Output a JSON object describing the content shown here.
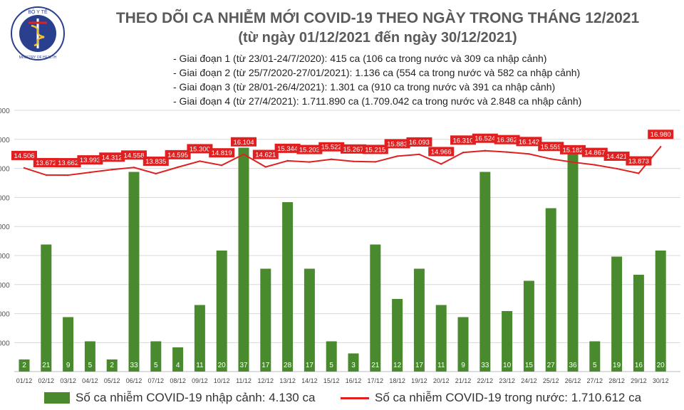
{
  "header": {
    "logo_text_top": "BỘ Y TẾ",
    "logo_text_bottom": "MINISTRY OF HEALTH",
    "title": "THEO DÕI CA NHIỄM MỚI COVID-19 THEO NGÀY TRONG THÁNG 12/2021",
    "subtitle": "(từ ngày 01/12/2021 đến ngày 30/12/2021)",
    "stages": [
      "- Giai đoạn 1 (từ 23/01-24/7/2020): 415 ca (106 ca trong nước và 309 ca nhập cảnh)",
      "- Giai đoạn 2 (từ 25/7/2020-27/01/2021): 1.136 ca (554 ca trong nước và 582 ca nhập cảnh)",
      "- Giai đoạn 3 (từ 28/01-26/4/2021): 1.301 ca (910 ca trong nước và 391 ca nhập cảnh)",
      "- Giai đoạn 4 (từ 27/4/2021): 1.711.890 ca (1.709.042 ca trong nước và 2.848 ca nhập cảnh)"
    ]
  },
  "colors": {
    "bar": "#4a8a2e",
    "line": "#e02020",
    "label_box": "#e02020",
    "title": "#5a5a5a"
  },
  "chart_data": {
    "type": "bar",
    "categories": [
      "01/12",
      "02/12",
      "03/12",
      "04/12",
      "05/12",
      "06/12",
      "07/12",
      "08/12",
      "09/12",
      "10/12",
      "11/12",
      "12/12",
      "13/12",
      "14/12",
      "15/12",
      "16/12",
      "17/12",
      "18/12",
      "19/12",
      "20/12",
      "21/12",
      "22/12",
      "23/12",
      "24/12",
      "25/12",
      "26/12",
      "27/12",
      "28/12",
      "29/12",
      "30/12"
    ],
    "series": [
      {
        "name": "Số ca nhiễm COVID-19 nhập cảnh: 4.130 ca",
        "type": "bar",
        "values": [
          2,
          21,
          9,
          5,
          2,
          33,
          5,
          4,
          11,
          20,
          37,
          17,
          28,
          17,
          5,
          3,
          21,
          12,
          17,
          11,
          9,
          33,
          10,
          15,
          27,
          36,
          5,
          19,
          16,
          20
        ],
        "labels": [
          "2",
          "21",
          "9",
          "5",
          "2",
          "33",
          "5",
          "4",
          "11",
          "20",
          "37",
          "17",
          "28",
          "17",
          "5",
          "3",
          "21",
          "12",
          "17",
          "11",
          "9",
          "33",
          "10",
          "15",
          "27",
          "36",
          "5",
          "19",
          "16",
          "20"
        ]
      },
      {
        "name": "Số ca nhiễm COVID-19 trong nước: 1.710.612 ca",
        "type": "line",
        "values": [
          14506,
          13672,
          13662,
          13993,
          14312,
          14558,
          13835,
          14595,
          15300,
          14819,
          16104,
          14621,
          15344,
          15203,
          15522,
          15267,
          15215,
          15883,
          16093,
          14966,
          16310,
          16524,
          16362,
          16142,
          15559,
          15182,
          14867,
          14421,
          13873,
          16980
        ],
        "labels": [
          "14.506",
          "13.672",
          "13.662",
          "13.993",
          "14.312",
          "14.558",
          "13.835",
          "14.595",
          "15.300",
          "14.819",
          "16.104",
          "14.621",
          "15.344",
          "15.203",
          "15.522",
          "15.267",
          "15.215",
          "15.883",
          "16.093",
          "14.966",
          "16.310",
          "16.524",
          "16.362",
          "16.142",
          "15.559",
          "15.182",
          "14.867",
          "14.421",
          "13.873",
          "16.980"
        ]
      }
    ],
    "y_tick_labels": [
      "000",
      "000",
      "000",
      "000",
      "000",
      "000",
      "000",
      "000",
      "000"
    ],
    "grid": true,
    "legend_position": "bottom"
  }
}
